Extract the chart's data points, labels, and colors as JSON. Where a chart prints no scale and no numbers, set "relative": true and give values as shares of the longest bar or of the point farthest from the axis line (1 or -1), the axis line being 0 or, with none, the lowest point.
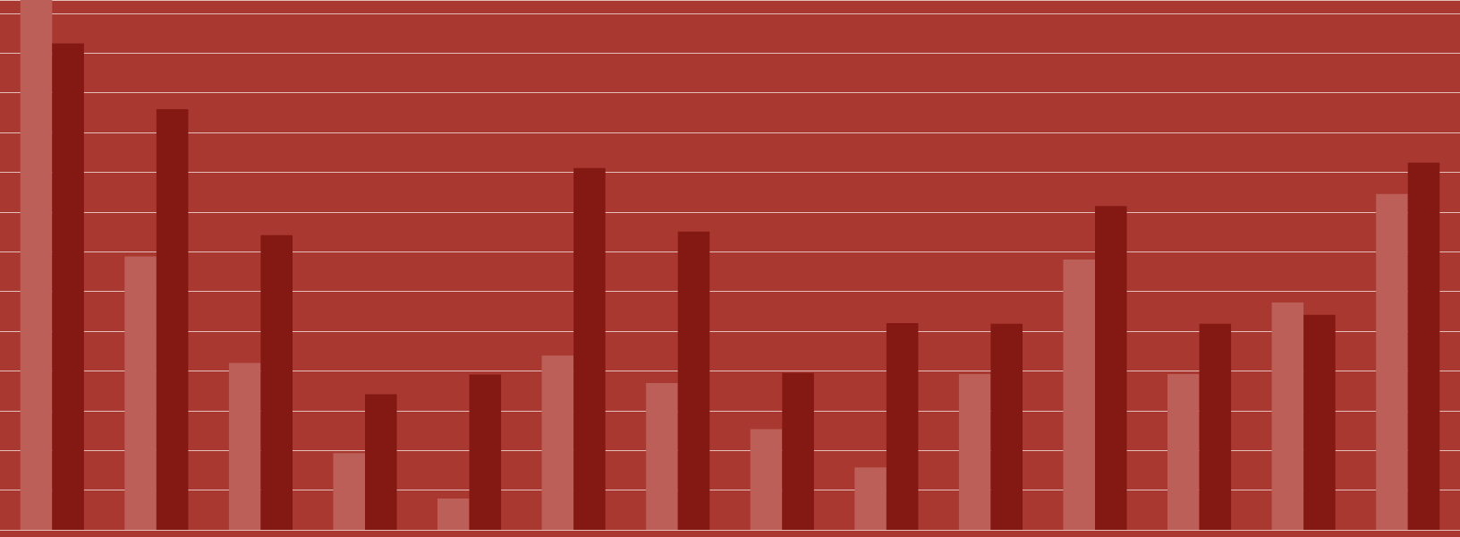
{
  "chart_data": {
    "type": "bar",
    "relative": true,
    "grid": "y",
    "categories": [
      null,
      null,
      null,
      null,
      null,
      null,
      null,
      null,
      null,
      null,
      null,
      null,
      null,
      null
    ],
    "series": [
      {
        "color": "#bb5f58",
        "values": [
          1.0,
          0.516,
          0.315,
          0.145,
          0.059,
          0.329,
          0.277,
          0.19,
          0.118,
          0.294,
          0.51,
          0.294,
          0.429,
          0.634
        ]
      },
      {
        "color": "#841812",
        "values": [
          0.918,
          0.794,
          0.556,
          0.256,
          0.293,
          0.683,
          0.563,
          0.296,
          0.39,
          0.389,
          0.611,
          0.389,
          0.406,
          0.693
        ]
      }
    ]
  }
}
